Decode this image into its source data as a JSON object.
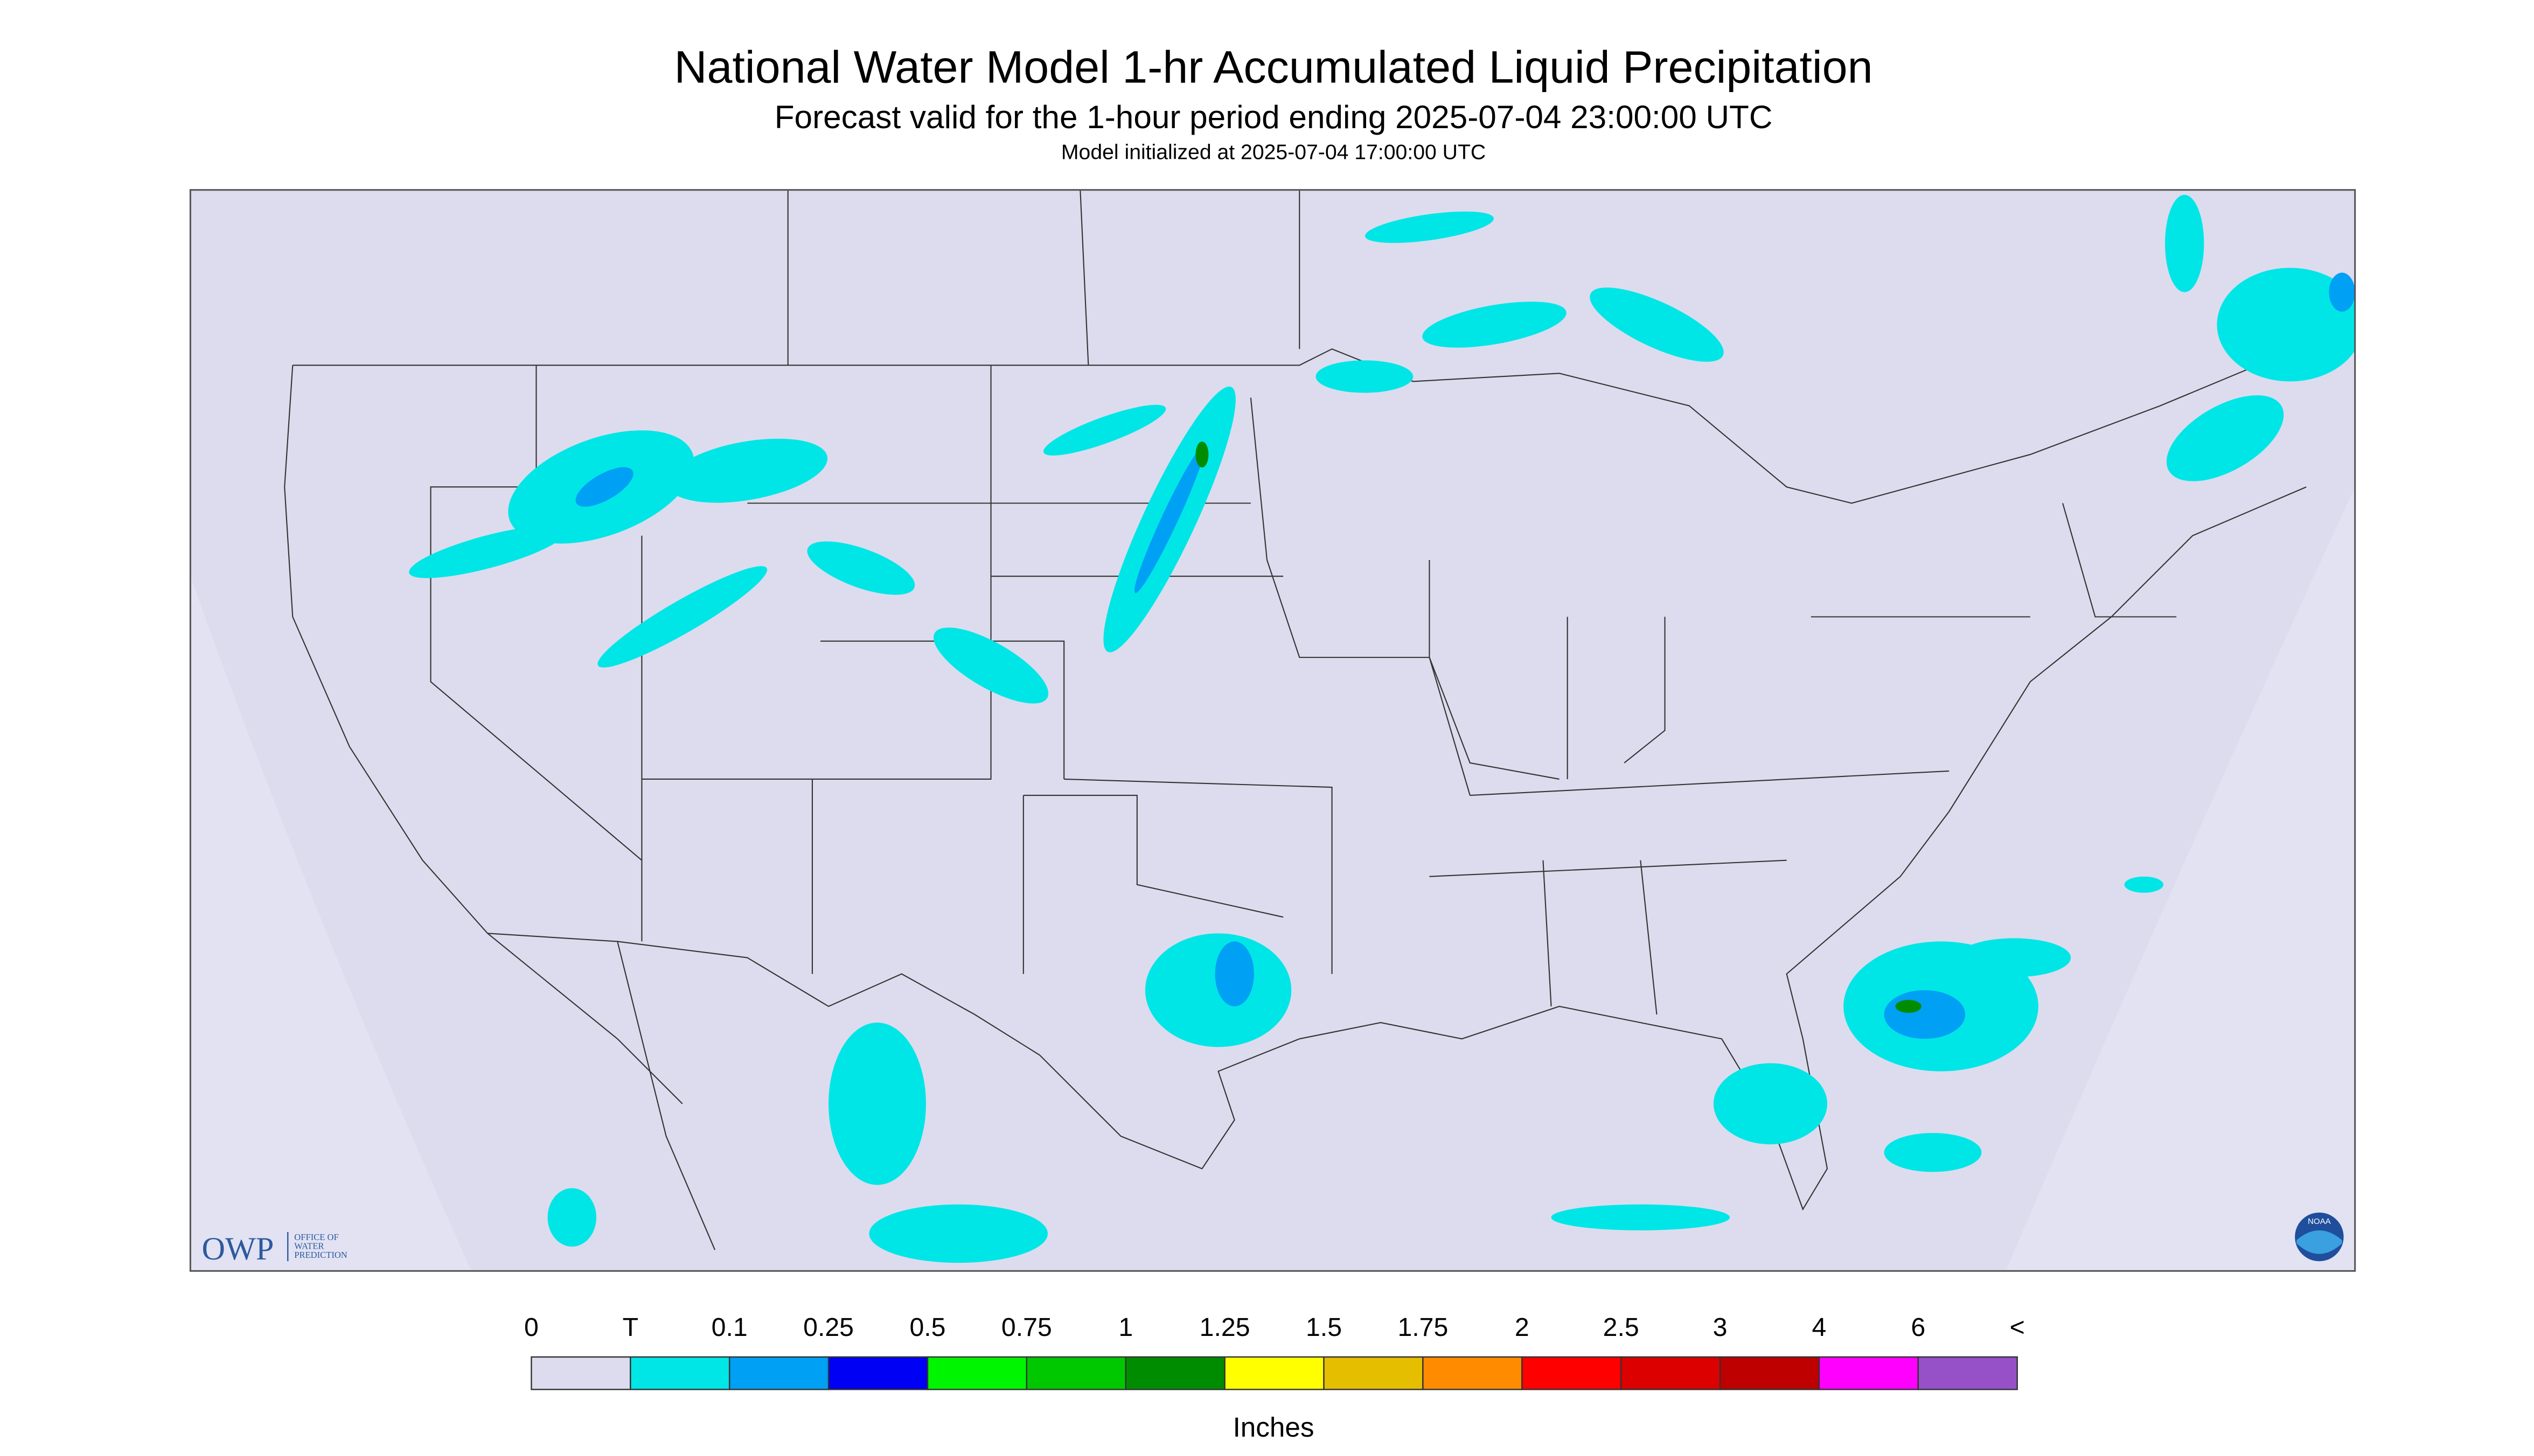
{
  "header": {
    "title": "National Water Model 1-hr Accumulated Liquid Precipitation",
    "subtitle": "Forecast valid for the 1-hour period ending 2025-07-04 23:00:00 UTC",
    "note": "Model initialized at 2025-07-04 17:00:00 UTC"
  },
  "logos": {
    "owp": "OWP",
    "owp_lines": [
      "OFFICE OF",
      "WATER",
      "PREDICTION"
    ],
    "noaa": "NOAA"
  },
  "legend": {
    "labels": [
      "0",
      "T",
      "0.1",
      "0.25",
      "0.5",
      "0.75",
      "1",
      "1.25",
      "1.5",
      "1.75",
      "2",
      "2.5",
      "3",
      "4",
      "6",
      "<"
    ],
    "colors": [
      "#dcdcee",
      "#00e6e6",
      "#00a0f5",
      "#0000f5",
      "#00f500",
      "#00c800",
      "#008c00",
      "#ffff00",
      "#e6be00",
      "#ff8c00",
      "#ff0000",
      "#dc0000",
      "#be0000",
      "#ff00ff",
      "#9650c8"
    ],
    "unit": "Inches"
  }
}
